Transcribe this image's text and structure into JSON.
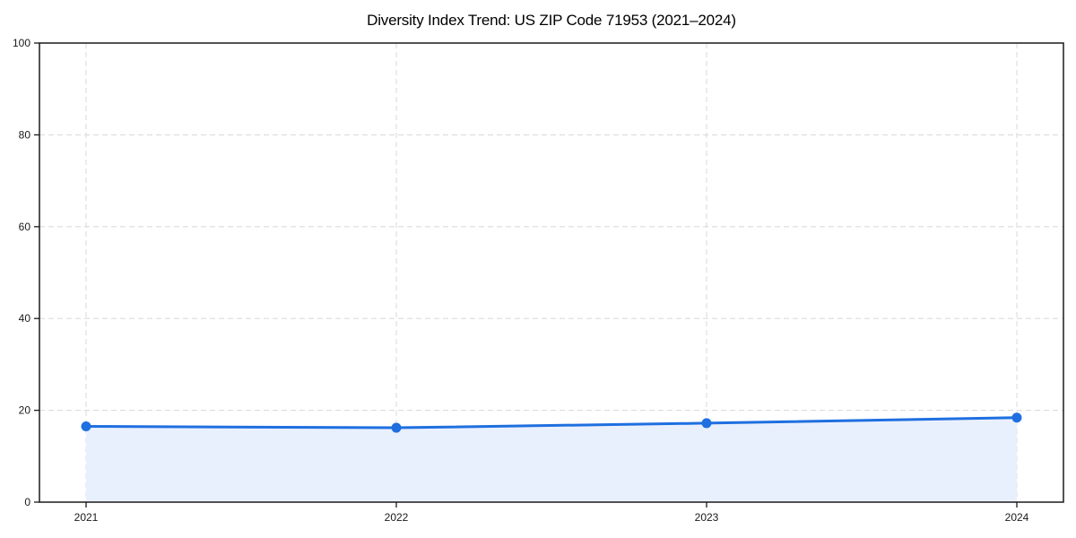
{
  "chart_data": {
    "type": "line",
    "title": "Diversity Index Trend: US ZIP Code 71953 (2021–2024)",
    "x": [
      2021,
      2022,
      2023,
      2024
    ],
    "categories": [
      "2021",
      "2022",
      "2023",
      "2024"
    ],
    "series": [
      {
        "name": "Diversity Index",
        "values": [
          16.5,
          16.2,
          17.2,
          18.4
        ]
      }
    ],
    "xlabel": "",
    "ylabel": "",
    "ylim": [
      0,
      100
    ],
    "y_ticks": [
      0,
      20,
      40,
      60,
      80,
      100
    ],
    "grid": "dashed horizontal and vertical gridlines",
    "legend_position": "none",
    "marker": "circle",
    "area_fill": true,
    "colors": {
      "line": "#1f6fe0",
      "marker": "#1f6fe0",
      "area_fill": "#e9f0fd",
      "grid": "#dcdcdc",
      "spine": "#1a1a1a",
      "title_text": "#000000",
      "tick_text": "#1a1a1a",
      "background": "#ffffff"
    }
  }
}
